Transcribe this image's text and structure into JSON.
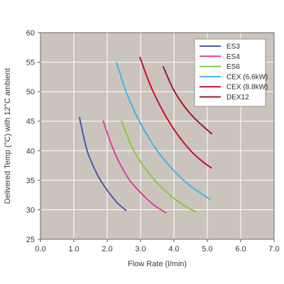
{
  "chart_data": {
    "type": "line",
    "xlabel": "Flow Rate (l/min)",
    "ylabel": "Delivered Temp (°C) with 12°C ambient",
    "xlim": [
      0,
      7
    ],
    "ylim": [
      25,
      60
    ],
    "x_ticks": [
      "0.0",
      "1.0",
      "2.0",
      "3.0",
      "4.0",
      "5.0",
      "6.0",
      "7.0"
    ],
    "y_ticks": [
      "25",
      "30",
      "35",
      "40",
      "45",
      "50",
      "55",
      "60"
    ],
    "grid": true,
    "legend_position": "top-right",
    "colors": {
      "plot_background": "#cbc4bd",
      "grid": "#ffffff",
      "legend_background": "#ffffff"
    },
    "series": [
      {
        "name": "ES3",
        "color": "#4d58a8",
        "x": [
          1.17,
          1.4,
          1.7,
          2.0,
          2.3,
          2.56
        ],
        "y": [
          45.6,
          40.0,
          36.0,
          33.3,
          31.2,
          29.9
        ]
      },
      {
        "name": "ES4",
        "color": "#e0409a",
        "x": [
          1.88,
          2.2,
          2.6,
          3.0,
          3.4,
          3.76
        ],
        "y": [
          45.0,
          40.0,
          35.6,
          32.9,
          30.8,
          29.5
        ]
      },
      {
        "name": "ES6",
        "color": "#8cc63f",
        "x": [
          2.43,
          2.8,
          3.3,
          3.8,
          4.25,
          4.64
        ],
        "y": [
          45.0,
          40.0,
          35.8,
          32.9,
          30.9,
          29.7
        ]
      },
      {
        "name": "CEX (6.6kW)",
        "color": "#3fb5e8",
        "x": [
          2.28,
          2.6,
          3.0,
          3.5,
          4.0,
          4.5,
          5.07
        ],
        "y": [
          54.9,
          49.5,
          44.6,
          40.0,
          36.6,
          34.0,
          31.8
        ]
      },
      {
        "name": "CEX (8.8kW)",
        "color": "#c8102e",
        "x": [
          2.98,
          3.3,
          3.7,
          4.1,
          4.5,
          4.85,
          5.12
        ],
        "y": [
          55.8,
          51.0,
          46.4,
          42.8,
          40.0,
          38.2,
          37.1
        ]
      },
      {
        "name": "DEX12",
        "color": "#9b1b30",
        "x": [
          3.68,
          4.0,
          4.3,
          4.6,
          4.9,
          5.13
        ],
        "y": [
          54.2,
          50.2,
          47.6,
          45.6,
          44.0,
          42.9
        ]
      }
    ]
  }
}
